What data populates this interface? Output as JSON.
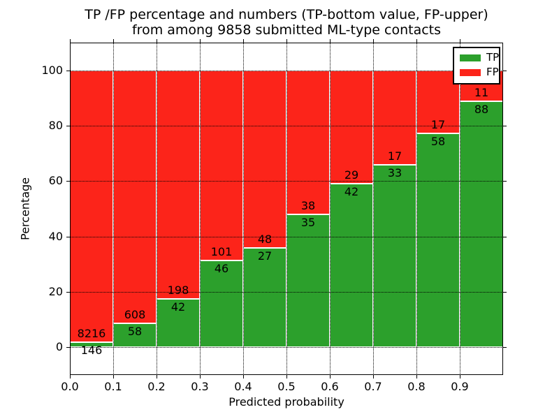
{
  "title": {
    "line1": "TP /FP percentage and numbers (TP-bottom value, FP-upper)",
    "line2": "from among 9858 submitted ML-type contacts"
  },
  "axes": {
    "xlabel": "Predicted probability",
    "ylabel": "Percentage",
    "x_tick_labels": [
      "0.0",
      "0.1",
      "0.2",
      "0.3",
      "0.4",
      "0.5",
      "0.6",
      "0.7",
      "0.8",
      "0.9"
    ],
    "y_tick_labels": [
      "0",
      "20",
      "40",
      "60",
      "80",
      "100"
    ],
    "y_tick_values": [
      0,
      20,
      40,
      60,
      80,
      100
    ],
    "xlim": [
      0.0,
      1.0
    ],
    "ylim": [
      -10,
      110
    ]
  },
  "legend": {
    "position": "upper right",
    "entries": [
      {
        "label": "TP",
        "color": "#2ca02c"
      },
      {
        "label": "FP",
        "color": "#fc241a"
      }
    ]
  },
  "chart_data": {
    "type": "bar",
    "stacked": true,
    "normalized_to": 100,
    "title": "TP /FP percentage and numbers (TP-bottom value, FP-upper) from among 9858 submitted ML-type contacts",
    "xlabel": "Predicted probability",
    "ylabel": "Percentage",
    "categories": [
      "0.0",
      "0.1",
      "0.2",
      "0.3",
      "0.4",
      "0.5",
      "0.6",
      "0.7",
      "0.8",
      "0.9"
    ],
    "bin_width": 0.1,
    "total_contacts": 9858,
    "series": [
      {
        "name": "TP",
        "color": "#2ca02c",
        "counts": [
          146,
          58,
          42,
          46,
          27,
          35,
          42,
          33,
          58,
          88
        ]
      },
      {
        "name": "FP",
        "color": "#fc241a",
        "counts": [
          8216,
          608,
          198,
          101,
          48,
          38,
          29,
          17,
          17,
          11
        ]
      }
    ],
    "tp_percent": [
      1.75,
      8.71,
      17.5,
      31.29,
      36.0,
      47.95,
      59.15,
      66.0,
      77.33,
      88.89
    ],
    "ylim": [
      -10,
      110
    ],
    "grid": true,
    "grid_style": "dotted",
    "legend_position": "upper right"
  }
}
